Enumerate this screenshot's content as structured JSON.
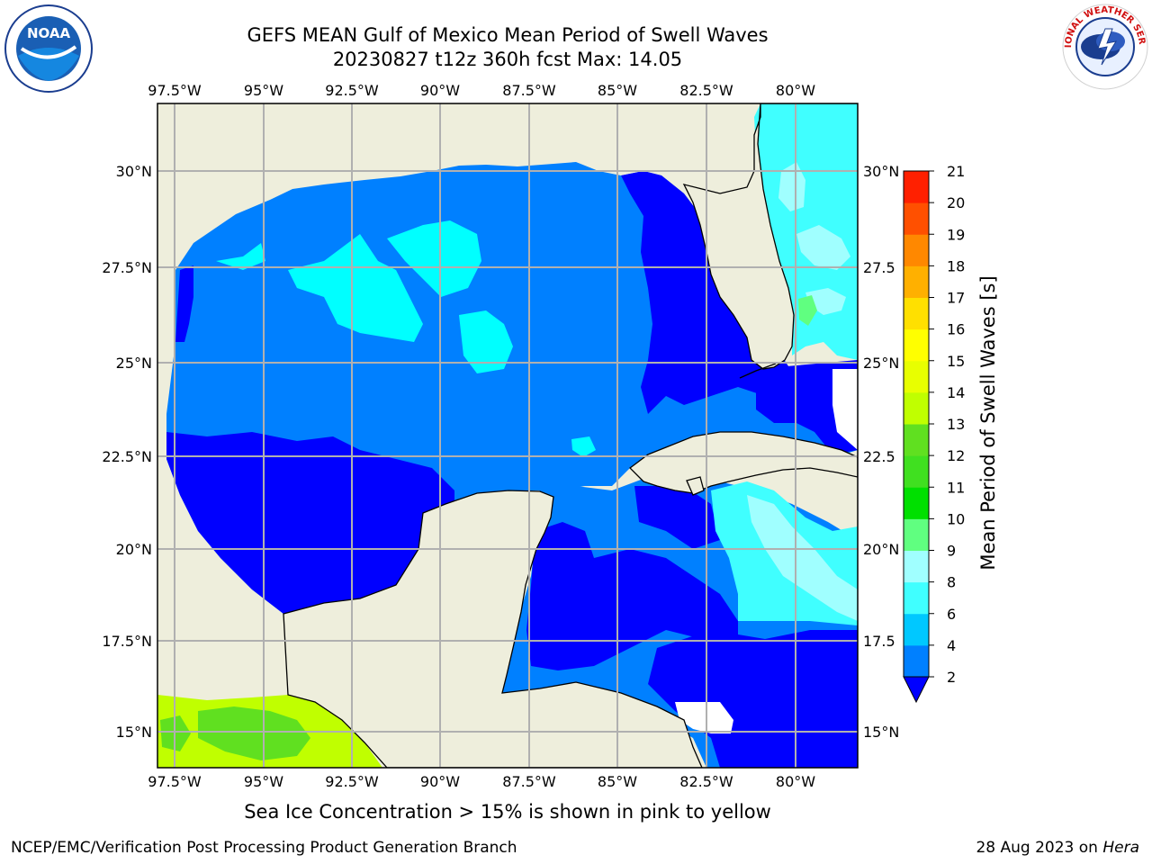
{
  "title": {
    "line1": "GEFS MEAN Gulf of Mexico Mean Period of Swell Waves",
    "line2": "20230827 t12z 360h fcst   Max: 14.05"
  },
  "logos": {
    "left": {
      "name": "noaa-logo",
      "text": "NOAA"
    },
    "right": {
      "name": "nws-logo",
      "text": "NATIONAL WEATHER SERVICE"
    }
  },
  "map": {
    "lon_labels": [
      "97.5°W",
      "95°W",
      "92.5°W",
      "90°W",
      "87.5°W",
      "85°W",
      "82.5°W",
      "80°W"
    ],
    "lat_labels_left": [
      "30°N",
      "27.5°N",
      "25°N",
      "22.5°N",
      "20°N",
      "17.5°N",
      "15°N"
    ],
    "lat_labels_right": [
      "30°N",
      "27.5",
      "25°N",
      "22.5",
      "20°N",
      "17.5",
      "15°N"
    ],
    "lon_range": [
      -98.0,
      -79.0
    ],
    "lat_range": [
      14.0,
      32.0
    ],
    "colors": {
      "land": "#eeeedc",
      "band_2_4": "#0080ff",
      "band_0_2": "#0000ff",
      "band_4_6": "#00ffff",
      "band_6_8": "#40ffff",
      "band_8_9": "#a0ffff",
      "band_9_10": "#60ff80",
      "band_10_11": "#00e000",
      "band_11_12": "#60e020",
      "band_12_13": "#c0ff00",
      "missing": "#ffffff"
    }
  },
  "colorbar": {
    "label": "Mean Period of Swell Waves [s]",
    "ticks": [
      "2",
      "4",
      "6",
      "8",
      "9",
      "10",
      "11",
      "12",
      "13",
      "14",
      "15",
      "16",
      "17",
      "18",
      "19",
      "20",
      "21"
    ],
    "colors": [
      "#0080ff",
      "#00c8ff",
      "#40ffff",
      "#a0ffff",
      "#60ff80",
      "#00e000",
      "#40e020",
      "#60e020",
      "#c0ff00",
      "#e8ff00",
      "#ffff00",
      "#ffe000",
      "#ffb000",
      "#ff8800",
      "#ff5000",
      "#ff2000"
    ],
    "extend_color": "#0000ff"
  },
  "note": "Sea Ice Concentration > 15% is shown in pink to yellow",
  "footer": {
    "left": "NCEP/EMC/Verification Post Processing Product Generation Branch",
    "right_prefix": "28 Aug 2023 on ",
    "right_italic": "Hera"
  }
}
